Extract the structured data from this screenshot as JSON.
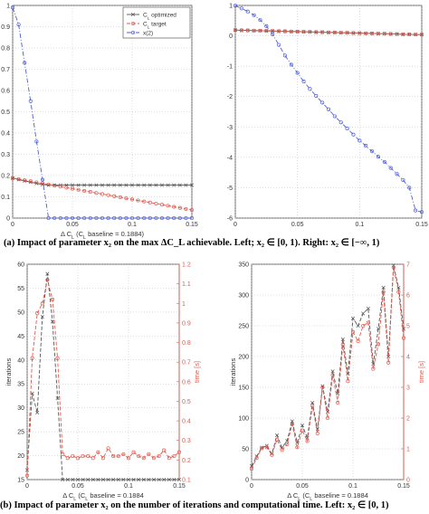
{
  "figure": {
    "caption_a": "(a) Impact of parameter x₂ on the max ΔC_L achievable. Left; x₂ ∈ [0, 1). Right: x₂ ∈ [−∞, 1)",
    "caption_b": "(b) Impact of parameter x₂ on the number of iterations and computational time. Left: x₂ ∈ [0, 1)"
  },
  "chart_data": [
    {
      "type": "line",
      "panel": "top-left",
      "xlabel": "Δ C_L (C_L baseline = 0.1884)",
      "xlim": [
        0,
        0.15
      ],
      "ylim": [
        0,
        1
      ],
      "xticks": [
        "0",
        "0.05",
        "0.1",
        "0.15"
      ],
      "yticks": [
        "0",
        "0.1",
        "0.2",
        "0.3",
        "0.4",
        "0.5",
        "0.6",
        "0.7",
        "0.8",
        "0.9",
        "1"
      ],
      "grid": true,
      "legend": "top-right",
      "x": [
        0,
        0.005,
        0.01,
        0.015,
        0.02,
        0.025,
        0.03,
        0.035,
        0.04,
        0.045,
        0.05,
        0.055,
        0.06,
        0.065,
        0.07,
        0.075,
        0.08,
        0.085,
        0.09,
        0.095,
        0.1,
        0.105,
        0.11,
        0.115,
        0.12,
        0.125,
        0.13,
        0.135,
        0.14,
        0.145,
        0.15
      ],
      "series": [
        {
          "name": "C_L optimized",
          "color": "#555555",
          "marker": "x",
          "dash": "solid",
          "values": [
            0.188,
            0.181,
            0.175,
            0.169,
            0.163,
            0.158,
            0.155,
            0.155,
            0.155,
            0.155,
            0.155,
            0.155,
            0.155,
            0.155,
            0.155,
            0.155,
            0.155,
            0.155,
            0.155,
            0.155,
            0.155,
            0.155,
            0.155,
            0.155,
            0.155,
            0.155,
            0.155,
            0.155,
            0.155,
            0.155,
            0.155
          ]
        },
        {
          "name": "C_L target",
          "color": "#e05a4e",
          "marker": "o",
          "dash": "dash",
          "values": [
            0.188,
            0.183,
            0.178,
            0.173,
            0.168,
            0.163,
            0.158,
            0.153,
            0.148,
            0.143,
            0.138,
            0.133,
            0.128,
            0.123,
            0.118,
            0.113,
            0.108,
            0.103,
            0.098,
            0.093,
            0.088,
            0.083,
            0.078,
            0.073,
            0.068,
            0.063,
            0.058,
            0.053,
            0.048,
            0.043,
            0.038
          ]
        },
        {
          "name": "x(2)",
          "color": "#4c5fd6",
          "marker": "o",
          "dash": "dashdot",
          "values": [
            0.99,
            0.91,
            0.73,
            0.55,
            0.36,
            0.18,
            0.0,
            0.0,
            0.0,
            0.0,
            0.0,
            0.0,
            0.0,
            0.0,
            0.0,
            0.0,
            0.0,
            0.0,
            0.0,
            0.0,
            0.0,
            0.0,
            0.0,
            0.0,
            0.0,
            0.0,
            0.0,
            0.0,
            0.0,
            0.0,
            0.0
          ]
        }
      ]
    },
    {
      "type": "line",
      "panel": "top-right",
      "xlabel": "",
      "xlim": [
        0,
        0.15
      ],
      "ylim": [
        -6,
        1
      ],
      "xticks": [
        "0",
        "0.05",
        "0.1",
        "0.15"
      ],
      "yticks": [
        "-6",
        "-5",
        "-4",
        "-3",
        "-2",
        "-1",
        "0",
        "1"
      ],
      "grid": true,
      "x": [
        0,
        0.005,
        0.01,
        0.015,
        0.02,
        0.025,
        0.03,
        0.035,
        0.04,
        0.045,
        0.05,
        0.055,
        0.06,
        0.065,
        0.07,
        0.075,
        0.08,
        0.085,
        0.09,
        0.095,
        0.1,
        0.105,
        0.11,
        0.115,
        0.12,
        0.125,
        0.13,
        0.135,
        0.14,
        0.145,
        0.15
      ],
      "series": [
        {
          "name": "C_L optimized",
          "color": "#555555",
          "marker": "x",
          "dash": "solid",
          "values": [
            0.19,
            0.18,
            0.18,
            0.17,
            0.17,
            0.16,
            0.16,
            0.15,
            0.15,
            0.14,
            0.14,
            0.13,
            0.13,
            0.12,
            0.12,
            0.11,
            0.11,
            0.1,
            0.1,
            0.09,
            0.09,
            0.08,
            0.08,
            0.07,
            0.07,
            0.06,
            0.06,
            0.05,
            0.05,
            0.04,
            0.04
          ]
        },
        {
          "name": "C_L target",
          "color": "#e05a4e",
          "marker": "o",
          "dash": "dash",
          "values": [
            0.188,
            0.183,
            0.178,
            0.173,
            0.168,
            0.163,
            0.158,
            0.153,
            0.148,
            0.143,
            0.138,
            0.133,
            0.128,
            0.123,
            0.118,
            0.113,
            0.108,
            0.103,
            0.098,
            0.093,
            0.088,
            0.083,
            0.078,
            0.073,
            0.068,
            0.063,
            0.058,
            0.053,
            0.048,
            0.043,
            0.038
          ]
        },
        {
          "name": "x(2)",
          "color": "#4c5fd6",
          "marker": "o",
          "dash": "dashdot",
          "values": [
            0.99,
            0.9,
            0.8,
            0.68,
            0.52,
            0.32,
            0.05,
            -0.3,
            -0.65,
            -0.95,
            -1.22,
            -1.5,
            -1.75,
            -1.98,
            -2.2,
            -2.42,
            -2.65,
            -2.85,
            -3.05,
            -3.25,
            -3.45,
            -3.62,
            -3.8,
            -3.98,
            -4.15,
            -4.35,
            -4.55,
            -4.75,
            -5.0,
            -5.75,
            -5.8
          ]
        }
      ]
    },
    {
      "type": "line",
      "panel": "bottom-left",
      "xlabel": "Δ C_L (C_L baseline = 0.1884",
      "ylabel": "iterations",
      "y2label": "time [s]",
      "xlim": [
        0,
        0.15
      ],
      "ylim": [
        15,
        60
      ],
      "y2lim": [
        0.1,
        1.2
      ],
      "xticks": [
        "0",
        "0.05",
        "0.1",
        "0.15"
      ],
      "yticks": [
        "15",
        "20",
        "25",
        "30",
        "35",
        "40",
        "45",
        "50",
        "55",
        "60"
      ],
      "y2ticks": [
        "0.1",
        "0.2",
        "0.3",
        "0.4",
        "0.5",
        "0.6",
        "0.7",
        "0.8",
        "0.9",
        "1",
        "1.1",
        "1.2"
      ],
      "grid": true,
      "x": [
        0,
        0.005,
        0.01,
        0.015,
        0.02,
        0.025,
        0.03,
        0.035,
        0.04,
        0.045,
        0.05,
        0.055,
        0.06,
        0.065,
        0.07,
        0.075,
        0.08,
        0.085,
        0.09,
        0.095,
        0.1,
        0.105,
        0.11,
        0.115,
        0.12,
        0.125,
        0.13,
        0.135,
        0.14,
        0.145,
        0.15
      ],
      "series": [
        {
          "name": "iterations",
          "axis": "left",
          "color": "#555555",
          "marker": "x",
          "dash": "dash",
          "values": [
            17,
            33,
            29,
            49,
            58,
            48,
            32,
            15,
            15,
            15,
            15,
            15,
            15,
            15,
            15,
            15,
            15,
            15,
            15,
            15,
            15,
            15,
            15,
            15,
            15,
            15,
            15,
            15,
            15,
            15,
            15
          ]
        },
        {
          "name": "time",
          "axis": "right",
          "color": "#e05a4e",
          "marker": "o",
          "dash": "dash",
          "values": [
            0.12,
            0.72,
            0.95,
            1.0,
            1.12,
            1.02,
            0.72,
            0.23,
            0.21,
            0.22,
            0.21,
            0.22,
            0.22,
            0.21,
            0.24,
            0.21,
            0.26,
            0.22,
            0.22,
            0.23,
            0.21,
            0.24,
            0.22,
            0.21,
            0.23,
            0.21,
            0.22,
            0.25,
            0.21,
            0.22,
            0.24
          ]
        }
      ]
    },
    {
      "type": "line",
      "panel": "bottom-right",
      "xlabel": "Δ C_L (C_L baseline = 0.1884",
      "ylabel": "iterations",
      "y2label": "time [s]",
      "xlim": [
        0,
        0.15
      ],
      "ylim": [
        0,
        350
      ],
      "y2lim": [
        0,
        7
      ],
      "xticks": [
        "0",
        "0.05",
        "0.1",
        "0.15"
      ],
      "yticks": [
        "0",
        "50",
        "100",
        "150",
        "200",
        "250",
        "300",
        "350"
      ],
      "y2ticks": [
        "0",
        "1",
        "2",
        "3",
        "4",
        "5",
        "6",
        "7"
      ],
      "grid": true,
      "x": [
        0,
        0.005,
        0.01,
        0.015,
        0.02,
        0.025,
        0.03,
        0.035,
        0.04,
        0.045,
        0.05,
        0.055,
        0.06,
        0.065,
        0.07,
        0.075,
        0.08,
        0.085,
        0.09,
        0.095,
        0.1,
        0.105,
        0.11,
        0.115,
        0.12,
        0.125,
        0.13,
        0.135,
        0.14,
        0.145,
        0.15
      ],
      "series": [
        {
          "name": "iterations",
          "axis": "left",
          "color": "#555555",
          "marker": "x",
          "dash": "dash",
          "values": [
            22,
            38,
            52,
            55,
            42,
            72,
            52,
            63,
            95,
            60,
            88,
            68,
            125,
            82,
            152,
            110,
            176,
            140,
            228,
            172,
            262,
            250,
            270,
            278,
            188,
            245,
            312,
            200,
            348,
            312,
            245
          ]
        },
        {
          "name": "time",
          "axis": "right",
          "color": "#e05a4e",
          "marker": "o",
          "dash": "dash",
          "values": [
            0.35,
            0.7,
            1.02,
            1.05,
            0.8,
            1.3,
            0.96,
            1.15,
            1.8,
            1.05,
            1.6,
            1.25,
            2.4,
            1.5,
            3.0,
            2.0,
            3.4,
            2.5,
            4.4,
            3.2,
            4.8,
            4.5,
            5.0,
            5.1,
            3.6,
            4.4,
            6.1,
            3.8,
            6.9,
            6.1,
            4.6
          ]
        }
      ]
    }
  ]
}
